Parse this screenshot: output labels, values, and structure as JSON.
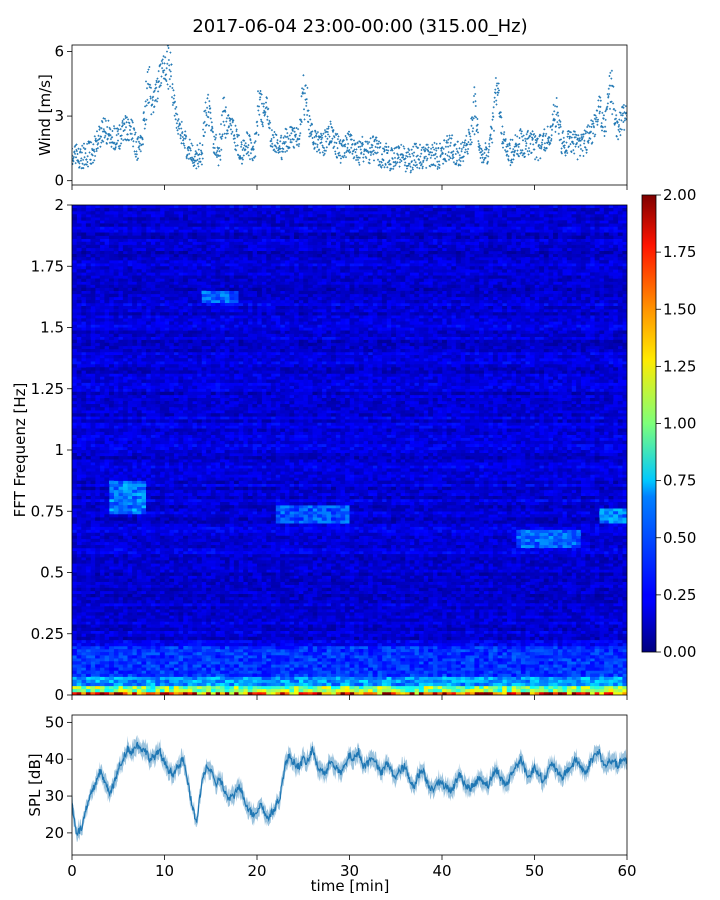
{
  "figure": {
    "title": "2017-06-04 23:00-00:00 (315.00_Hz)"
  },
  "chart_data": [
    {
      "name": "wind",
      "type": "scatter",
      "title": "",
      "xlabel": "",
      "ylabel": "Wind [m/s]",
      "xlim": [
        0,
        60
      ],
      "ylim": [
        -0.2,
        6.3
      ],
      "xticks": [
        0,
        10,
        20,
        30,
        40,
        50,
        60
      ],
      "yticks": [
        0,
        3,
        6
      ],
      "ytick_labels": [
        "0",
        "3",
        "6"
      ],
      "grid": false,
      "series_color": "#1f77b4",
      "x": [
        0,
        0.5,
        1,
        1.5,
        2,
        2.5,
        3,
        3.5,
        4,
        4.5,
        5,
        5.5,
        6,
        6.5,
        7,
        7.5,
        8,
        8.5,
        9,
        9.5,
        10,
        10.5,
        11,
        11.5,
        12,
        12.5,
        13,
        13.5,
        14,
        14.5,
        15,
        15.5,
        16,
        16.5,
        17,
        17.5,
        18,
        18.5,
        19,
        19.5,
        20,
        20.5,
        21,
        21.5,
        22,
        22.5,
        23,
        23.5,
        24,
        24.5,
        25,
        25.5,
        26,
        26.5,
        27,
        27.5,
        28,
        28.5,
        29,
        29.5,
        30,
        30.5,
        31,
        31.5,
        32,
        32.5,
        33,
        33.5,
        34,
        34.5,
        35,
        35.5,
        36,
        36.5,
        37,
        37.5,
        38,
        38.5,
        39,
        39.5,
        40,
        40.5,
        41,
        41.5,
        42,
        42.5,
        43,
        43.5,
        44,
        44.5,
        45,
        45.5,
        46,
        46.5,
        47,
        47.5,
        48,
        48.5,
        49,
        49.5,
        50,
        50.5,
        51,
        51.5,
        52,
        52.5,
        53,
        53.5,
        54,
        54.5,
        55,
        55.5,
        56,
        56.5,
        57,
        57.5,
        58,
        58.5,
        59,
        59.5,
        60
      ],
      "y": [
        1.2,
        1.1,
        1.1,
        1.2,
        1.3,
        1.5,
        2.1,
        2.4,
        2.2,
        2.0,
        1.9,
        2.3,
        2.5,
        2.2,
        1.5,
        1.6,
        2.3,
        2.7,
        3.8,
        4.8,
        5.2,
        3.6,
        3.1,
        2.6,
        2.1,
        1.5,
        1.3,
        1.1,
        1.0,
        1.3,
        2.2,
        1.6,
        0.9,
        1.5,
        2.5,
        2.2,
        1.6,
        1.3,
        1.8,
        1.2,
        1.0,
        1.8,
        3.5,
        1.9,
        1.7,
        1.4,
        1.8,
        1.9,
        2.0,
        1.6,
        1.7,
        2.4,
        1.9,
        1.8,
        1.6,
        1.9,
        2.2,
        1.8,
        1.3,
        1.6,
        1.8,
        1.6,
        1.3,
        1.5,
        1.2,
        1.6,
        1.4,
        1.1,
        1.2,
        1.0,
        1.3,
        1.2,
        1.0,
        0.9,
        1.2,
        1.1,
        1.0,
        1.3,
        1.2,
        1.1,
        1.3,
        1.5,
        1.6,
        1.3,
        1.2,
        1.4,
        1.6,
        1.5,
        1.3,
        1.4,
        1.3,
        1.6,
        2.1,
        1.7,
        1.4,
        1.3,
        1.6,
        1.8,
        1.5,
        1.9,
        1.6,
        1.5,
        1.8,
        2.0,
        2.2,
        1.8,
        1.6,
        1.8,
        1.9,
        1.6,
        1.5,
        1.8,
        2.1,
        2.6,
        3.5,
        2.4,
        2.0,
        2.2,
        2.4,
        2.9,
        3.0
      ],
      "peaks": [
        [
          8.3,
          5.2
        ],
        [
          10.5,
          6.0
        ],
        [
          14.6,
          4.3
        ],
        [
          16.5,
          4.0
        ],
        [
          20.3,
          4.7
        ],
        [
          25.1,
          5.0
        ],
        [
          43.5,
          4.2
        ],
        [
          45.9,
          5.1
        ],
        [
          52.3,
          3.8
        ],
        [
          58.2,
          5.5
        ]
      ]
    },
    {
      "name": "spectrogram",
      "type": "heatmap",
      "title": "",
      "xlabel": "",
      "ylabel": "FFT Frequenz [Hz]",
      "xlim": [
        0,
        60
      ],
      "ylim": [
        0,
        2
      ],
      "xticks": [
        0,
        10,
        20,
        30,
        40,
        50,
        60
      ],
      "yticks": [
        0,
        0.25,
        0.5,
        0.75,
        1,
        1.25,
        1.5,
        1.75,
        2
      ],
      "ytick_labels": [
        "0",
        "0.25",
        "0.5",
        "0.75",
        "1",
        "1.25",
        "1.5",
        "1.75",
        "2"
      ],
      "grid": false,
      "colormap": "jet",
      "background_level": 0.18,
      "features": [
        {
          "t": [
            0,
            60
          ],
          "f": [
            0,
            0.015
          ],
          "value": 1.6
        },
        {
          "t": [
            0,
            60
          ],
          "f": [
            0.015,
            0.04
          ],
          "value": 1.0
        },
        {
          "t": [
            0,
            60
          ],
          "f": [
            0.04,
            0.08
          ],
          "value": 0.55
        },
        {
          "t": [
            0,
            60
          ],
          "f": [
            0.08,
            0.2
          ],
          "value": 0.35
        },
        {
          "t": [
            4,
            8
          ],
          "f": [
            0.74,
            0.87
          ],
          "value": 0.5
        },
        {
          "t": [
            14,
            18
          ],
          "f": [
            1.6,
            1.65
          ],
          "value": 0.45
        },
        {
          "t": [
            22,
            30
          ],
          "f": [
            0.7,
            0.78
          ],
          "value": 0.42
        },
        {
          "t": [
            48,
            55
          ],
          "f": [
            0.6,
            0.67
          ],
          "value": 0.45
        },
        {
          "t": [
            57,
            60
          ],
          "f": [
            0.7,
            0.76
          ],
          "value": 0.5
        }
      ]
    },
    {
      "name": "colorbar",
      "type": "colorbar",
      "colormap": "jet",
      "range": [
        0,
        2
      ],
      "ticks": [
        0,
        0.25,
        0.5,
        0.75,
        1,
        1.25,
        1.5,
        1.75,
        2
      ],
      "tick_labels": [
        "0.00",
        "0.25",
        "0.50",
        "0.75",
        "1.00",
        "1.25",
        "1.50",
        "1.75",
        "2.00"
      ]
    },
    {
      "name": "spl",
      "type": "area",
      "title": "",
      "xlabel": "time [min]",
      "ylabel": "SPL [dB]",
      "xlim": [
        0,
        60
      ],
      "ylim": [
        14,
        52
      ],
      "xticks": [
        0,
        10,
        20,
        30,
        40,
        50,
        60
      ],
      "xtick_labels": [
        "0",
        "10",
        "20",
        "30",
        "40",
        "50",
        "60"
      ],
      "yticks": [
        20,
        30,
        40,
        50
      ],
      "ytick_labels": [
        "20",
        "30",
        "40",
        "50"
      ],
      "grid": false,
      "series_color": "#1f77b4",
      "x": [
        0,
        0.5,
        1,
        1.5,
        2,
        2.5,
        3,
        3.5,
        4,
        4.5,
        5,
        5.5,
        6,
        6.5,
        7,
        7.5,
        8,
        8.5,
        9,
        9.5,
        10,
        10.5,
        11,
        11.5,
        12,
        12.5,
        13,
        13.5,
        14,
        14.5,
        15,
        15.5,
        16,
        16.5,
        17,
        17.5,
        18,
        18.5,
        19,
        19.5,
        20,
        20.5,
        21,
        21.5,
        22,
        22.5,
        23,
        23.5,
        24,
        24.5,
        25,
        25.5,
        26,
        26.5,
        27,
        27.5,
        28,
        28.5,
        29,
        29.5,
        30,
        30.5,
        31,
        31.5,
        32,
        32.5,
        33,
        33.5,
        34,
        34.5,
        35,
        35.5,
        36,
        36.5,
        37,
        37.5,
        38,
        38.5,
        39,
        39.5,
        40,
        40.5,
        41,
        41.5,
        42,
        42.5,
        43,
        43.5,
        44,
        44.5,
        45,
        45.5,
        46,
        46.5,
        47,
        47.5,
        48,
        48.5,
        49,
        49.5,
        50,
        50.5,
        51,
        51.5,
        52,
        52.5,
        53,
        53.5,
        54,
        54.5,
        55,
        55.5,
        56,
        56.5,
        57,
        57.5,
        58,
        58.5,
        59,
        59.5,
        60
      ],
      "y": [
        28,
        20,
        21,
        26,
        30,
        33,
        37,
        34,
        31,
        33,
        37,
        40,
        43,
        42,
        44,
        43,
        42,
        40,
        41,
        42,
        39,
        37,
        36,
        38,
        40,
        34,
        27,
        23,
        33,
        38,
        37,
        33,
        35,
        31,
        29,
        30,
        33,
        30,
        27,
        25,
        26,
        28,
        24,
        25,
        27,
        30,
        38,
        41,
        39,
        38,
        40,
        39,
        43,
        38,
        37,
        36,
        40,
        38,
        36,
        38,
        41,
        40,
        42,
        38,
        39,
        41,
        38,
        36,
        39,
        37,
        35,
        37,
        38,
        34,
        33,
        36,
        37,
        33,
        32,
        34,
        33,
        33,
        31,
        34,
        36,
        33,
        32,
        33,
        35,
        34,
        33,
        36,
        37,
        34,
        33,
        36,
        38,
        40,
        37,
        35,
        38,
        36,
        34,
        37,
        39,
        36,
        35,
        37,
        38,
        40,
        38,
        36,
        39,
        41,
        42,
        38,
        39,
        40,
        38,
        40,
        39
      ],
      "band_halfwidth": 2.0
    }
  ]
}
